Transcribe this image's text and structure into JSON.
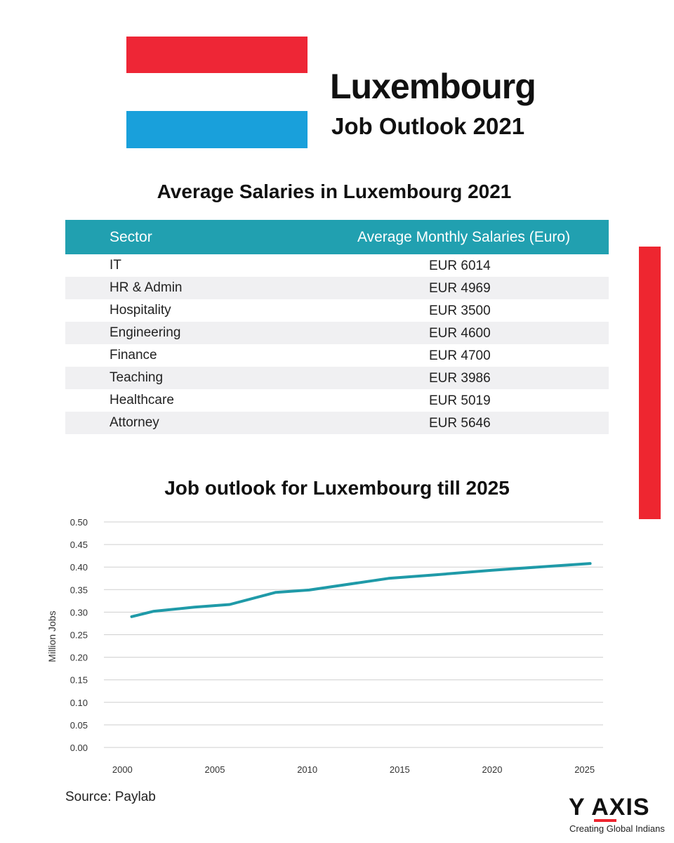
{
  "header": {
    "title": "Luxembourg",
    "subtitle": "Job Outlook 2021",
    "flag_top_color": "#ee2636",
    "flag_bottom_color": "#19a0db"
  },
  "salary_table": {
    "title": "Average Salaries in Luxembourg 2021",
    "col_sector": "Sector",
    "col_salary": "Average Monthly Salaries (Euro)",
    "rows": [
      {
        "sector": "IT",
        "salary": "EUR 6014"
      },
      {
        "sector": "HR & Admin",
        "salary": "EUR 4969"
      },
      {
        "sector": "Hospitality",
        "salary": "EUR 3500"
      },
      {
        "sector": "Engineering",
        "salary": "EUR 4600"
      },
      {
        "sector": "Finance",
        "salary": "EUR 4700"
      },
      {
        "sector": "Teaching",
        "salary": "EUR 3986"
      },
      {
        "sector": "Healthcare",
        "salary": "EUR 5019"
      },
      {
        "sector": "Attorney",
        "salary": "EUR 5646"
      }
    ],
    "header_color": "#21a0b0"
  },
  "chart_data": {
    "type": "line",
    "title": "Job outlook for Luxembourg till 2025",
    "ylabel": "Million Jobs",
    "xlabel": "",
    "xlim": [
      1999,
      2026
    ],
    "ylim": [
      0,
      0.5
    ],
    "x_ticks": [
      2000,
      2005,
      2010,
      2015,
      2020,
      2025
    ],
    "y_ticks": [
      0.0,
      0.05,
      0.1,
      0.15,
      0.2,
      0.25,
      0.3,
      0.35,
      0.4,
      0.45,
      0.5
    ],
    "y_tick_labels": [
      "0.00",
      "0.05",
      "0.10",
      "0.15",
      "0.20",
      "0.25",
      "0.30",
      "0.35",
      "0.40",
      "0.45",
      "0.50"
    ],
    "grid": true,
    "series": [
      {
        "color": "#1f9aa8",
        "x": [
          2000.5,
          2001.7,
          2003.9,
          2005.8,
          2008.3,
          2010.1,
          2014.4,
          2017.0,
          2020.0,
          2025.3
        ],
        "y": [
          0.29,
          0.302,
          0.311,
          0.317,
          0.344,
          0.349,
          0.375,
          0.383,
          0.393,
          0.408
        ]
      }
    ]
  },
  "footer": {
    "source": "Source: Paylab",
    "logo_text": "Y AXIS",
    "logo_tagline": "Creating Global Indians",
    "accent_color": "#ee2630"
  }
}
